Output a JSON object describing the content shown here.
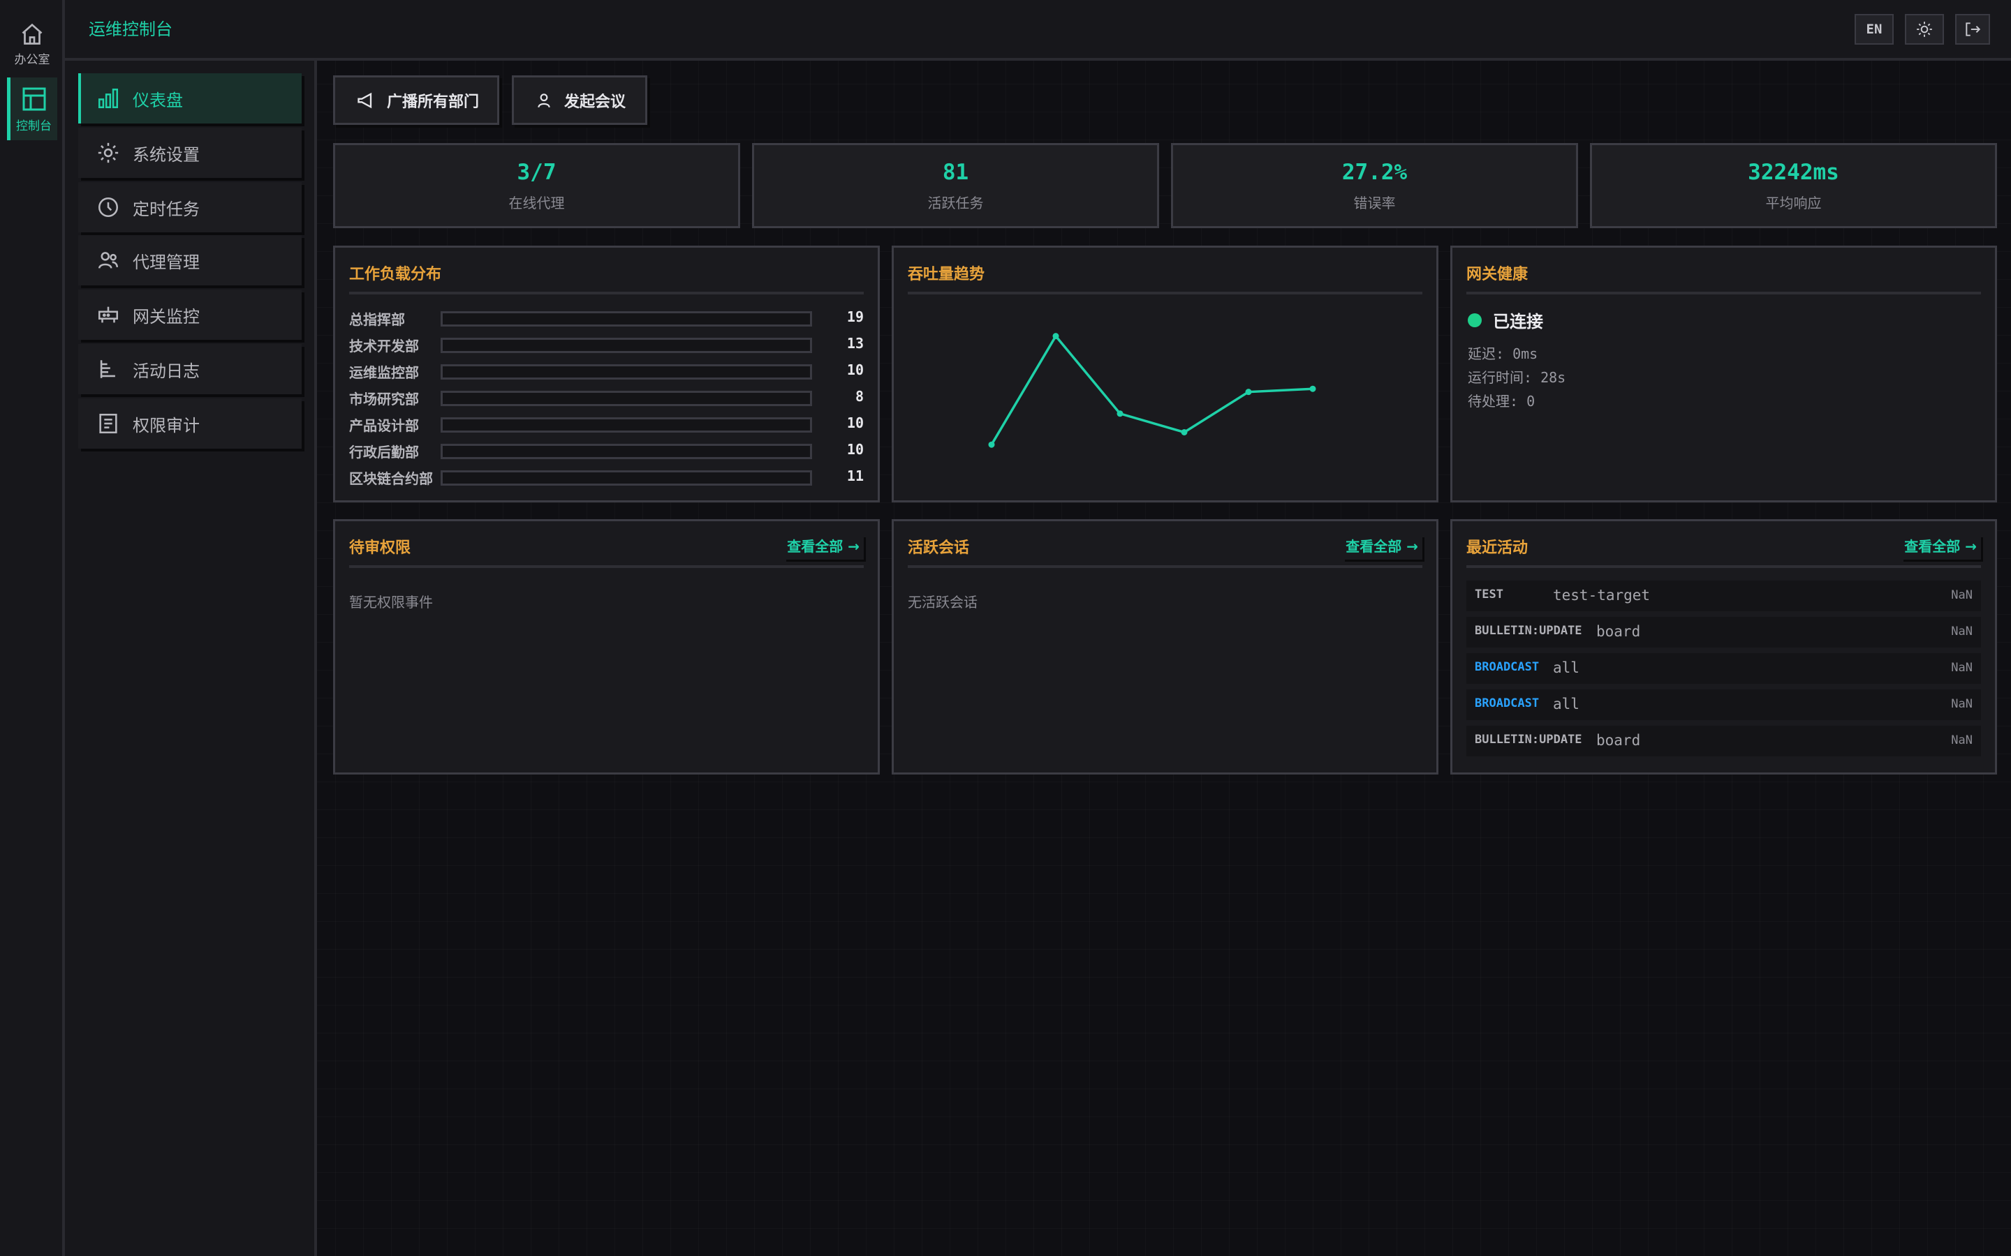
{
  "rail": {
    "items": [
      {
        "label": "办公室",
        "icon": "home-icon"
      },
      {
        "label": "控制台",
        "icon": "layout-icon"
      }
    ]
  },
  "header": {
    "title": "运维控制台",
    "lang_label": "EN"
  },
  "sidebar": {
    "items": [
      {
        "label": "仪表盘",
        "icon": "bar-chart-icon"
      },
      {
        "label": "系统设置",
        "icon": "gear-icon"
      },
      {
        "label": "定时任务",
        "icon": "clock-icon"
      },
      {
        "label": "代理管理",
        "icon": "users-icon"
      },
      {
        "label": "网关监控",
        "icon": "gateway-icon"
      },
      {
        "label": "活动日志",
        "icon": "log-icon"
      },
      {
        "label": "权限审计",
        "icon": "audit-icon"
      }
    ]
  },
  "actions": {
    "broadcast_label": "广播所有部门",
    "meeting_label": "发起会议"
  },
  "stats": [
    {
      "value": "3/7",
      "label": "在线代理"
    },
    {
      "value": "81",
      "label": "活跃任务"
    },
    {
      "value": "27.2%",
      "label": "错误率"
    },
    {
      "value": "32242ms",
      "label": "平均响应"
    }
  ],
  "workload": {
    "title": "工作负载分布",
    "rows": [
      {
        "name": "总指挥部",
        "value": "19"
      },
      {
        "name": "技术开发部",
        "value": "13"
      },
      {
        "name": "运维监控部",
        "value": "10"
      },
      {
        "name": "市场研究部",
        "value": "8"
      },
      {
        "name": "产品设计部",
        "value": "10"
      },
      {
        "name": "行政后勤部",
        "value": "10"
      },
      {
        "name": "区块链合约部",
        "value": "11"
      }
    ]
  },
  "throughput": {
    "title": "吞吐量趋势"
  },
  "chart_data": {
    "type": "line",
    "title": "吞吐量趋势",
    "x": [
      1,
      2,
      3,
      4,
      5,
      6
    ],
    "series": [
      {
        "values": [
          4,
          39,
          14,
          8,
          21,
          22
        ],
        "color": "#1fd1a8"
      }
    ],
    "xlabel": "",
    "ylabel": "",
    "ylim": [
      0,
      45
    ],
    "grid": false
  },
  "gateway": {
    "title": "网关健康",
    "status": "已连接",
    "status_color": "#1ecf8a",
    "latency": "延迟: 0ms",
    "uptime": "运行时间: 28s",
    "pending": "待处理: 0"
  },
  "permissions": {
    "title": "待审权限",
    "view_all": "查看全部 →",
    "empty": "暂无权限事件"
  },
  "sessions": {
    "title": "活跃会话",
    "view_all": "查看全部 →",
    "empty": "无活跃会话"
  },
  "activity": {
    "title": "最近活动",
    "view_all": "查看全部 →",
    "rows": [
      {
        "type": "TEST",
        "target": "test-target",
        "time": "NaN",
        "broadcast": false
      },
      {
        "type": "BULLETIN:UPDATE",
        "target": "board",
        "time": "NaN",
        "broadcast": false
      },
      {
        "type": "BROADCAST",
        "target": "all",
        "time": "NaN",
        "broadcast": true
      },
      {
        "type": "BROADCAST",
        "target": "all",
        "time": "NaN",
        "broadcast": true
      },
      {
        "type": "BULLETIN:UPDATE",
        "target": "board",
        "time": "NaN",
        "broadcast": false
      }
    ]
  },
  "colors": {
    "accent": "#1fd1a8",
    "heading": "#e8a33b",
    "broadcast": "#2aa3ff"
  }
}
